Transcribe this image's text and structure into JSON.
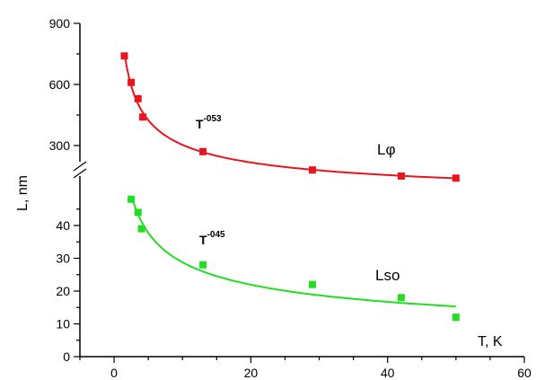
{
  "chart_data": {
    "type": "scatter",
    "title": "",
    "xlabel": "T, K",
    "ylabel": "L, nm",
    "xlim": [
      -5,
      60
    ],
    "x_ticks": [
      0,
      20,
      40,
      60
    ],
    "axis_break": "y",
    "upper_segment": {
      "ylim": [
        200,
        900
      ],
      "ticks": [
        300,
        600,
        900
      ]
    },
    "lower_segment": {
      "ylim": [
        0,
        48
      ],
      "ticks": [
        0,
        10,
        20,
        30,
        40
      ]
    },
    "grid": false,
    "series": [
      {
        "name": "Lφ",
        "color": "#e8141e",
        "segment": "upper",
        "x": [
          1.5,
          2.5,
          3.5,
          4.2,
          13,
          29,
          42,
          50
        ],
        "y": [
          740,
          610,
          530,
          440,
          270,
          180,
          150,
          140
        ],
        "fit": {
          "law": "power",
          "exponent_label": "-053",
          "annotation": "T",
          "x_range": [
            1.6,
            50
          ]
        }
      },
      {
        "name": "Lso",
        "color": "#22dd22",
        "segment": "lower",
        "x": [
          2.5,
          3.5,
          4.0,
          13,
          29,
          42,
          50
        ],
        "y": [
          48,
          44,
          39,
          28,
          22,
          18,
          12
        ],
        "fit": {
          "law": "power",
          "exponent_label": "-045",
          "annotation": "T",
          "x_range": [
            2.4,
            50
          ]
        }
      }
    ]
  }
}
